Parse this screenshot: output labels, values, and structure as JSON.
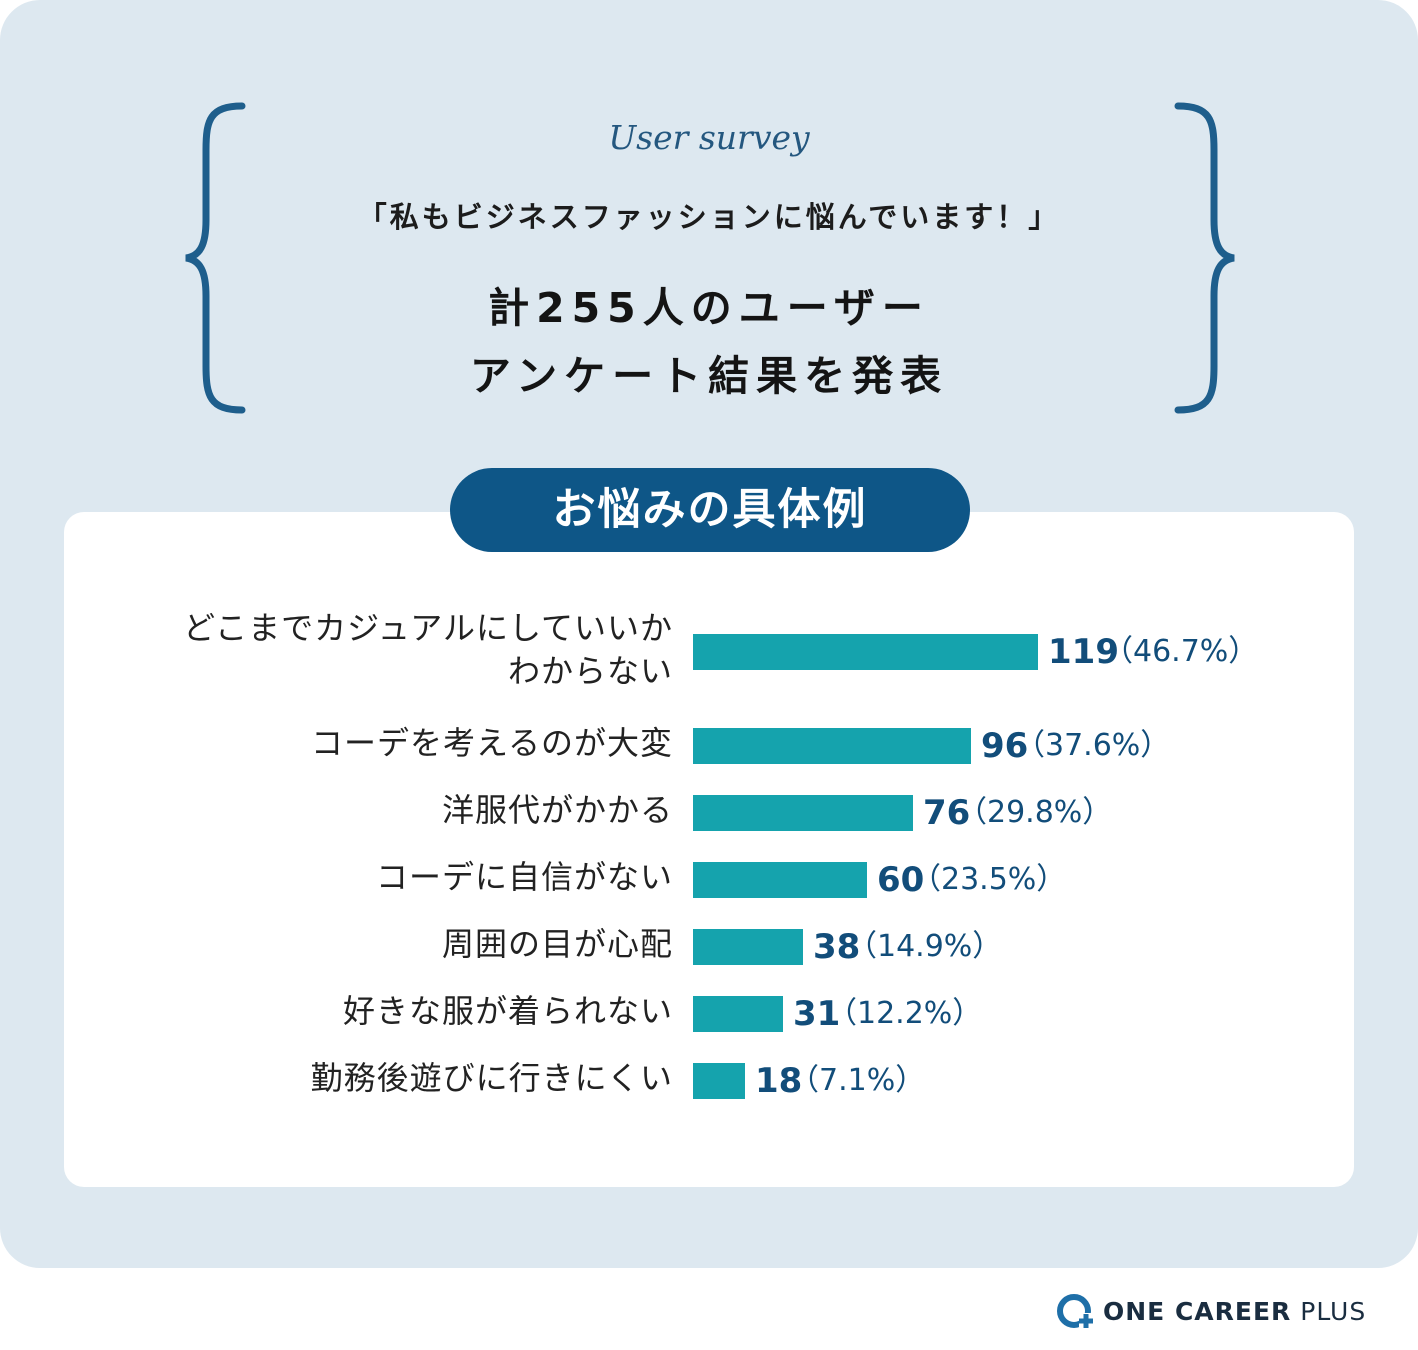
{
  "header": {
    "survey_tag": "User survey",
    "quote": "「私もビジネスファッションに悩んでいます！」",
    "headline_line1": "計255人のユーザー",
    "headline_line2": "アンケート結果を発表"
  },
  "section": {
    "pill_title": "お悩みの具体例"
  },
  "chart_data": {
    "type": "bar",
    "orientation": "horizontal",
    "categories": [
      [
        "どこまでカジュアルにしていいか",
        "わからない"
      ],
      [
        "コーデを考えるのが大変"
      ],
      [
        "洋服代がかかる"
      ],
      [
        "コーデに自信がない"
      ],
      [
        "周囲の目が心配"
      ],
      [
        "好きな服が着られない"
      ],
      [
        "勤務後遊びに行きにくい"
      ]
    ],
    "values": [
      119,
      96,
      76,
      60,
      38,
      31,
      18
    ],
    "percent_labels": [
      "（46.7%）",
      "（37.6%）",
      "（29.8%）",
      "（23.5%）",
      "（14.9%）",
      "（12.2%）",
      "（7.1%）"
    ],
    "bar_color": "#15a3ad",
    "value_color": "#124d7a",
    "grid": false
  },
  "brand": {
    "logo_bold": "ONE CAREER",
    "logo_light": " PLUS",
    "accent": "#0e5687"
  }
}
